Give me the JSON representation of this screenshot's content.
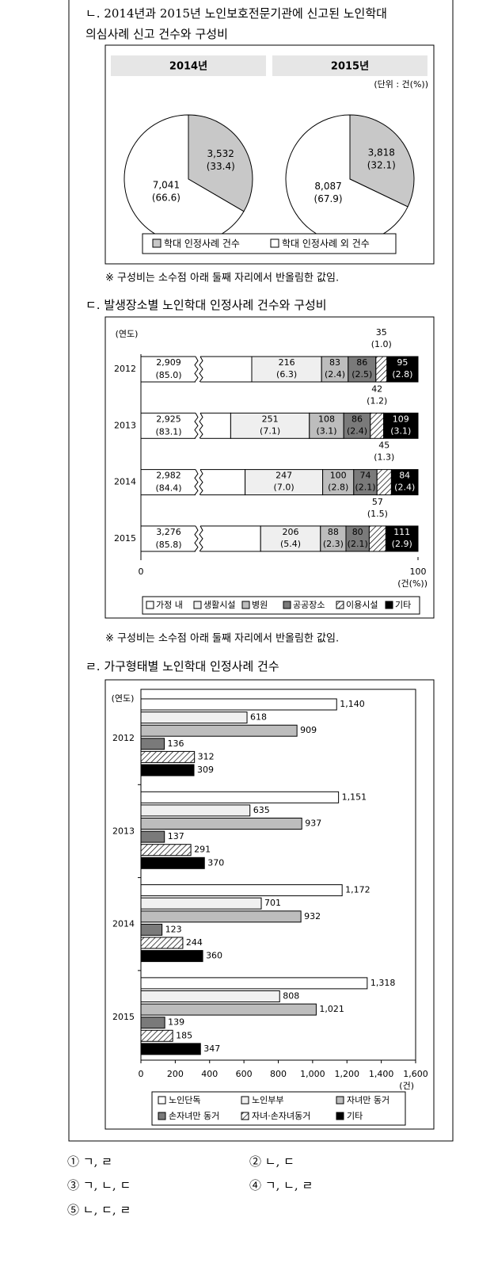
{
  "headings": [
    [
      "ㄴ. 2014년과 2015년 노인보호전문기관에 신고된 노인학대",
      "의심사례 신고 건수와 구성비"
    ],
    [
      "ㄷ. 발생장소별 노인학대 인정사례 건수와 구성비"
    ],
    [
      "ㄹ. 가구형태별 노인학대 인정사례 건수"
    ]
  ],
  "notes": [
    "※ 구성비는 소수점 아래 둘째 자리에서 반올림한 값임.",
    "※ 구성비는 소수점 아래 둘째 자리에서 반올림한 값임."
  ],
  "options": [
    "① ㄱ, ㄹ",
    "② ㄴ, ㄷ",
    "③ ㄱ, ㄴ, ㄷ",
    "④ ㄱ, ㄴ, ㄹ",
    "⑤ ㄴ, ㄷ, ㄹ"
  ],
  "chart_data": [
    {
      "type": "pie",
      "unit_label": "(단위 : 건(%))",
      "categories": [
        "학대 인정사례 건수",
        "학대 인정사례 외 건수"
      ],
      "colors": [
        "#c8c8c8",
        "#ffffff"
      ],
      "pies": [
        {
          "title": "2014년",
          "values": [
            3532,
            7041
          ],
          "value_labels": [
            "3,532",
            "7,041"
          ],
          "shares": [
            33.4,
            66.6
          ],
          "share_labels": [
            "(33.4)",
            "(66.6)"
          ]
        },
        {
          "title": "2015년",
          "values": [
            3818,
            8087
          ],
          "value_labels": [
            "3,818",
            "8,087"
          ],
          "shares": [
            32.1,
            67.9
          ],
          "share_labels": [
            "(32.1)",
            "(67.9)"
          ]
        }
      ]
    },
    {
      "type": "bar",
      "stacked": true,
      "axis_break": true,
      "category_axis_label": "(연도)",
      "x_axis_label": "(건(%))",
      "categories": [
        "2012",
        "2013",
        "2014",
        "2015"
      ],
      "xlim": [
        0,
        100
      ],
      "xticks": [
        0,
        100
      ],
      "series": [
        {
          "name": "가정 내",
          "color": "#ffffff",
          "values": [
            2909,
            2925,
            2982,
            3276
          ],
          "value_labels": [
            "2,909",
            "2,925",
            "2,982",
            "3,276"
          ],
          "shares": [
            85.0,
            83.1,
            84.4,
            85.8
          ],
          "share_labels": [
            "(85.0)",
            "(83.1)",
            "(84.4)",
            "(85.8)"
          ]
        },
        {
          "name": "생활시설",
          "color": "#efefef",
          "values": [
            216,
            251,
            247,
            206
          ],
          "shares": [
            6.3,
            7.1,
            7.0,
            5.4
          ],
          "share_labels": [
            "(6.3)",
            "(7.1)",
            "(7.0)",
            "(5.4)"
          ]
        },
        {
          "name": "병원",
          "color": "#bdbdbd",
          "values": [
            83,
            108,
            100,
            88
          ],
          "shares": [
            2.4,
            3.1,
            2.8,
            2.3
          ],
          "share_labels": [
            "(2.4)",
            "(3.1)",
            "(2.8)",
            "(2.3)"
          ]
        },
        {
          "name": "공공장소",
          "color": "#7a7a7a",
          "values": [
            86,
            86,
            74,
            80
          ],
          "shares": [
            2.5,
            2.4,
            2.1,
            2.1
          ],
          "share_labels": [
            "(2.5)",
            "(2.4)",
            "(2.1)",
            "(2.1)"
          ]
        },
        {
          "name": "이용시설",
          "color": "#ffffff",
          "pattern": "hatch",
          "values": [
            35,
            42,
            45,
            57
          ],
          "shares": [
            1.0,
            1.2,
            1.3,
            1.5
          ],
          "share_labels": [
            "(1.0)",
            "(1.2)",
            "(1.3)",
            "(1.5)"
          ]
        },
        {
          "name": "기타",
          "color": "#000000",
          "values": [
            95,
            109,
            84,
            111
          ],
          "shares": [
            2.8,
            3.1,
            2.4,
            2.9
          ],
          "share_labels": [
            "(2.8)",
            "(3.1)",
            "(2.4)",
            "(2.9)"
          ]
        }
      ]
    },
    {
      "type": "bar",
      "stacked": false,
      "category_axis_label": "(연도)",
      "x_axis_label": "(건)",
      "categories": [
        "2012",
        "2013",
        "2014",
        "2015"
      ],
      "xlim": [
        0,
        1600
      ],
      "xticks": [
        0,
        200,
        400,
        600,
        800,
        {
          "value": 1000,
          "label": "1,000"
        },
        {
          "value": 1200,
          "label": "1,200"
        },
        {
          "value": 1400,
          "label": "1,400"
        },
        {
          "value": 1600,
          "label": "1,600"
        }
      ],
      "series": [
        {
          "name": "노인단독",
          "color": "#ffffff",
          "values": [
            1140,
            1151,
            1172,
            1318
          ],
          "value_labels": [
            "1,140",
            "1,151",
            "1,172",
            "1,318"
          ]
        },
        {
          "name": "노인부부",
          "color": "#f0f0f0",
          "values": [
            618,
            635,
            701,
            808
          ],
          "value_labels": [
            "618",
            "635",
            "701",
            "808"
          ]
        },
        {
          "name": "자녀만 동거",
          "color": "#bdbdbd",
          "values": [
            909,
            937,
            932,
            1021
          ],
          "value_labels": [
            "909",
            "937",
            "932",
            "1,021"
          ]
        },
        {
          "name": "손자녀만 동거",
          "color": "#7a7a7a",
          "values": [
            136,
            137,
            123,
            139
          ],
          "value_labels": [
            "136",
            "137",
            "123",
            "139"
          ]
        },
        {
          "name": "자녀·손자녀동거",
          "color": "#ffffff",
          "pattern": "hatch",
          "values": [
            312,
            291,
            244,
            185
          ],
          "value_labels": [
            "312",
            "291",
            "244",
            "185"
          ]
        },
        {
          "name": "기타",
          "color": "#000000",
          "values": [
            309,
            370,
            360,
            347
          ],
          "value_labels": [
            "309",
            "370",
            "360",
            "347"
          ]
        }
      ]
    }
  ]
}
